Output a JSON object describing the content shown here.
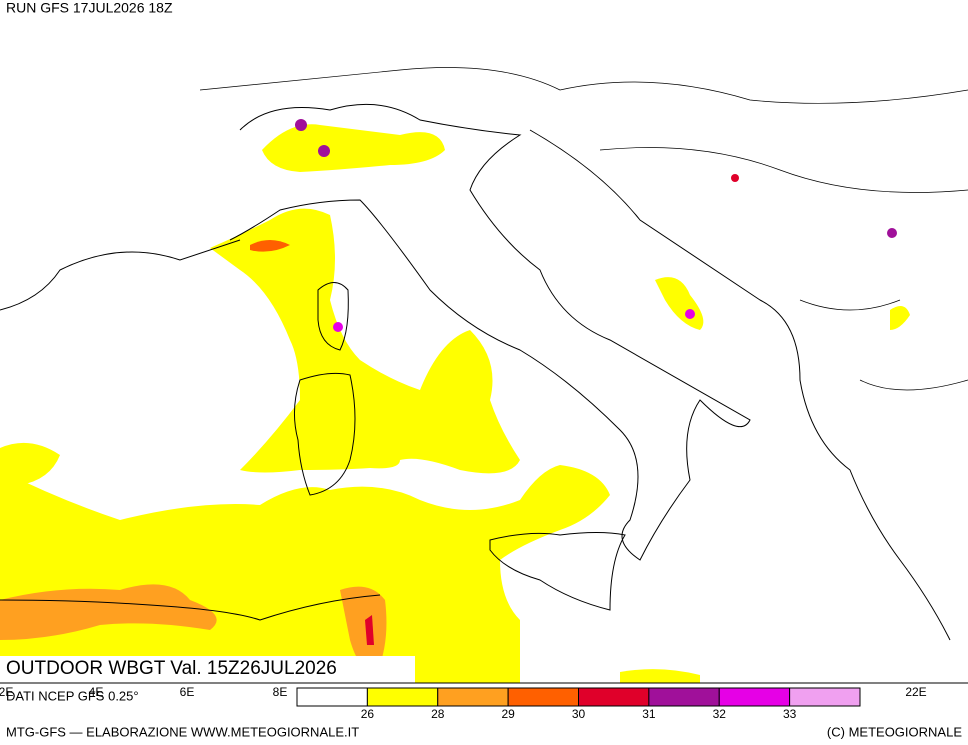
{
  "header": {
    "run": "RUN GFS 17JUL2026 18Z",
    "title": "OUTDOOR WBGT Val. 15Z26JUL2026"
  },
  "map": {
    "lon_labels": [
      "2E",
      "4E",
      "6E",
      "8E",
      "22E"
    ]
  },
  "legend": {
    "colors": [
      "#ffffff",
      "#ffff00",
      "#ffa020",
      "#ff6000",
      "#e0002a",
      "#a0109a",
      "#e600e6",
      "#f0a0f0"
    ],
    "levels": [
      26,
      28,
      29,
      30,
      31,
      32,
      33
    ]
  },
  "footer": {
    "source": "DATI NCEP GFS 0.25°",
    "left": "MTG-GFS — ELABORAZIONE WWW.METEOGIORNALE.IT",
    "right": "(C) METEOGIORNALE"
  }
}
